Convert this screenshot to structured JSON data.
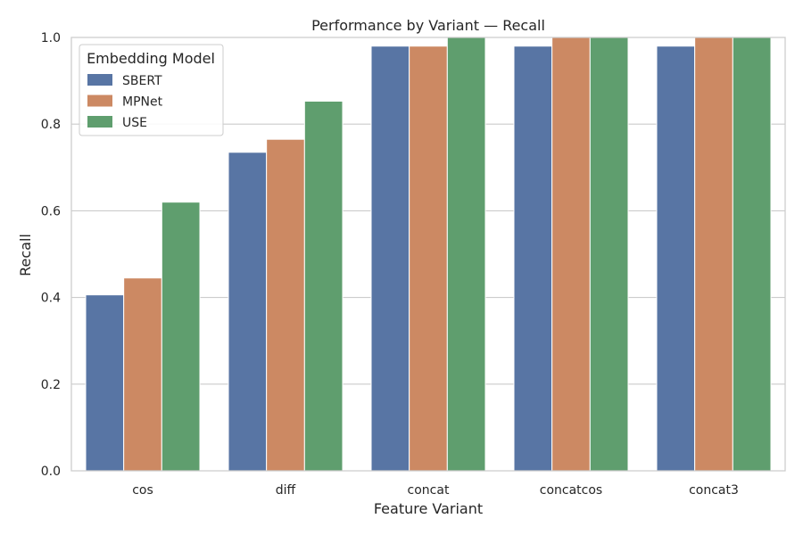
{
  "chart_data": {
    "type": "bar",
    "title": "Performance by Variant — Recall",
    "xlabel": "Feature Variant",
    "ylabel": "Recall",
    "categories": [
      "cos",
      "diff",
      "concat",
      "concatcos",
      "concat3"
    ],
    "series": [
      {
        "name": "SBERT",
        "color": "#5875a4",
        "values": [
          0.406,
          0.735,
          0.98,
          0.98,
          0.98
        ]
      },
      {
        "name": "MPNet",
        "color": "#cc8963",
        "values": [
          0.445,
          0.765,
          0.98,
          1.0,
          1.0
        ]
      },
      {
        "name": "USE",
        "color": "#5f9e6e",
        "values": [
          0.62,
          0.853,
          1.0,
          1.0,
          1.0
        ]
      }
    ],
    "ylim": [
      0,
      1.0
    ],
    "yticks": [
      "0.0",
      "0.2",
      "0.4",
      "0.6",
      "0.8",
      "1.0"
    ],
    "grid": true,
    "legend": {
      "title": "Embedding Model",
      "position": "top-left"
    }
  }
}
